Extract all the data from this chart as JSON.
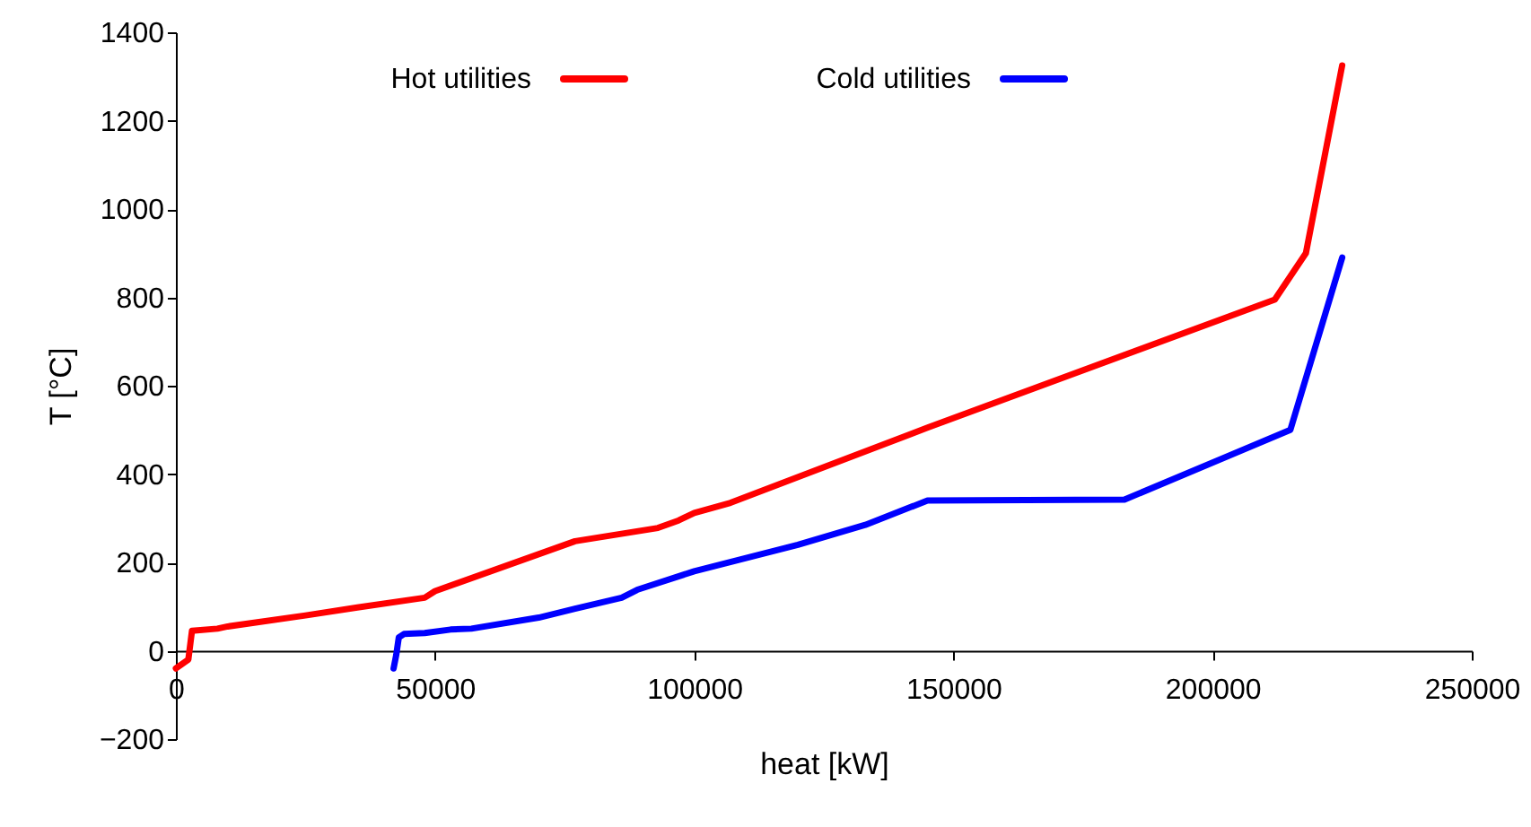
{
  "chart_data": {
    "type": "line",
    "xlabel": "heat [kW]",
    "ylabel": "T [°C]",
    "legend": "top left",
    "grid": false,
    "xlim": [
      0,
      250000
    ],
    "xticks": [
      0,
      50000,
      100000,
      150000,
      200000,
      250000
    ],
    "ylim": [
      -200,
      1400
    ],
    "yticks": [
      -200,
      0,
      200,
      400,
      600,
      800,
      1000,
      1200,
      1400
    ],
    "series": [
      {
        "name": "Hot utilities",
        "color": "#ff0000",
        "x": [
          0,
          2400,
          3100,
          8000,
          10000,
          25000,
          35000,
          48000,
          50000,
          77000,
          93000,
          97000,
          100000,
          107000,
          145000,
          212000,
          218000,
          225000
        ],
        "values": [
          -40,
          -20,
          45,
          50,
          55,
          80,
          98,
          120,
          135,
          248,
          278,
          295,
          312,
          335,
          505,
          795,
          900,
          1325
        ]
      },
      {
        "name": "Cold utilities",
        "color": "#0000ff",
        "x": [
          42000,
          42500,
          43000,
          44000,
          48000,
          53000,
          57000,
          70000,
          77000,
          86000,
          89000,
          100000,
          120000,
          133000,
          145000,
          183000,
          215000,
          225000
        ],
        "values": [
          -40,
          -10,
          30,
          38,
          40,
          48,
          50,
          75,
          95,
          120,
          138,
          180,
          240,
          285,
          340,
          342,
          500,
          890
        ]
      }
    ]
  }
}
